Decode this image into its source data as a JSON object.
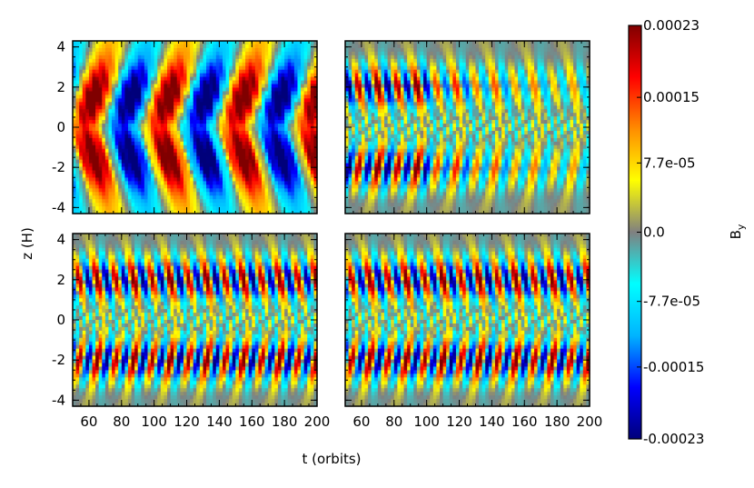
{
  "chart_data": {
    "type": "heatmap",
    "panels": [
      {
        "name": "",
        "pattern": "slow-dynamo"
      },
      {
        "name": "",
        "pattern": "fast-dynamo"
      },
      {
        "name": "",
        "pattern": "fast-dynamo-strong"
      },
      {
        "name": "",
        "pattern": "fast-dynamo-strong"
      }
    ],
    "xlabel": "t (orbits)",
    "ylabel": "z (H)",
    "x_ticks": [
      "60",
      "80",
      "100",
      "120",
      "140",
      "160",
      "180",
      "200"
    ],
    "x_tick_values": [
      60,
      80,
      100,
      120,
      140,
      160,
      180,
      200
    ],
    "y_ticks": [
      "4",
      "2",
      "0",
      "-2",
      "-4"
    ],
    "y_tick_values": [
      4,
      2,
      0,
      -2,
      -4
    ],
    "xlim": [
      50,
      200
    ],
    "ylim": [
      -4.3,
      4.3
    ],
    "colorbar": {
      "label": "By",
      "label_main": "B",
      "label_sub": "y",
      "ticks": [
        "0.00023",
        "0.00015",
        "7.7e-05",
        "0.0",
        "-7.7e-05",
        "-0.00015",
        "-0.00023"
      ],
      "tick_values": [
        0.00023,
        0.00015,
        7.7e-05,
        0.0,
        -7.7e-05,
        -0.00015,
        -0.00023
      ],
      "range": [
        -0.00023,
        0.00023
      ]
    },
    "colormap": [
      "#00007a",
      "#0000ff",
      "#00b4ff",
      "#00ffff",
      "#808080",
      "#ffff00",
      "#ff8c00",
      "#ff0000",
      "#800000"
    ]
  }
}
